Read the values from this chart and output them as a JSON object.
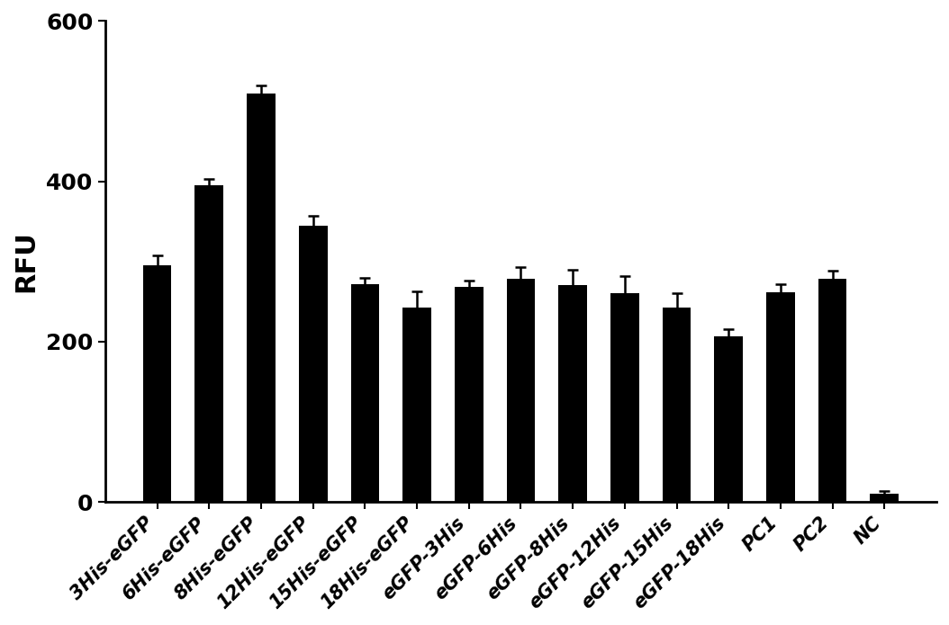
{
  "categories": [
    "3His-eGFP",
    "6His-eGFP",
    "8His-eGFP",
    "12His-eGFP",
    "15His-eGFP",
    "18His-eGFP",
    "eGFP-3His",
    "eGFP-6His",
    "eGFP-8His",
    "eGFP-12His",
    "eGFP-15His",
    "eGFP-18His",
    "PC1",
    "PC2",
    "NC"
  ],
  "values": [
    295,
    395,
    510,
    345,
    272,
    243,
    268,
    278,
    270,
    260,
    242,
    207,
    262,
    278,
    10
  ],
  "errors": [
    12,
    8,
    10,
    12,
    8,
    20,
    8,
    15,
    20,
    22,
    18,
    8,
    10,
    10,
    3
  ],
  "bar_color": "#000000",
  "error_color": "#000000",
  "ylabel": "RFU",
  "ylim": [
    0,
    600
  ],
  "yticks": [
    0,
    200,
    400,
    600
  ],
  "background_color": "#ffffff",
  "bar_width": 0.55,
  "ylabel_fontsize": 22,
  "tick_fontsize": 18,
  "xlabel_rotation": 45,
  "xlabel_fontsize": 15
}
